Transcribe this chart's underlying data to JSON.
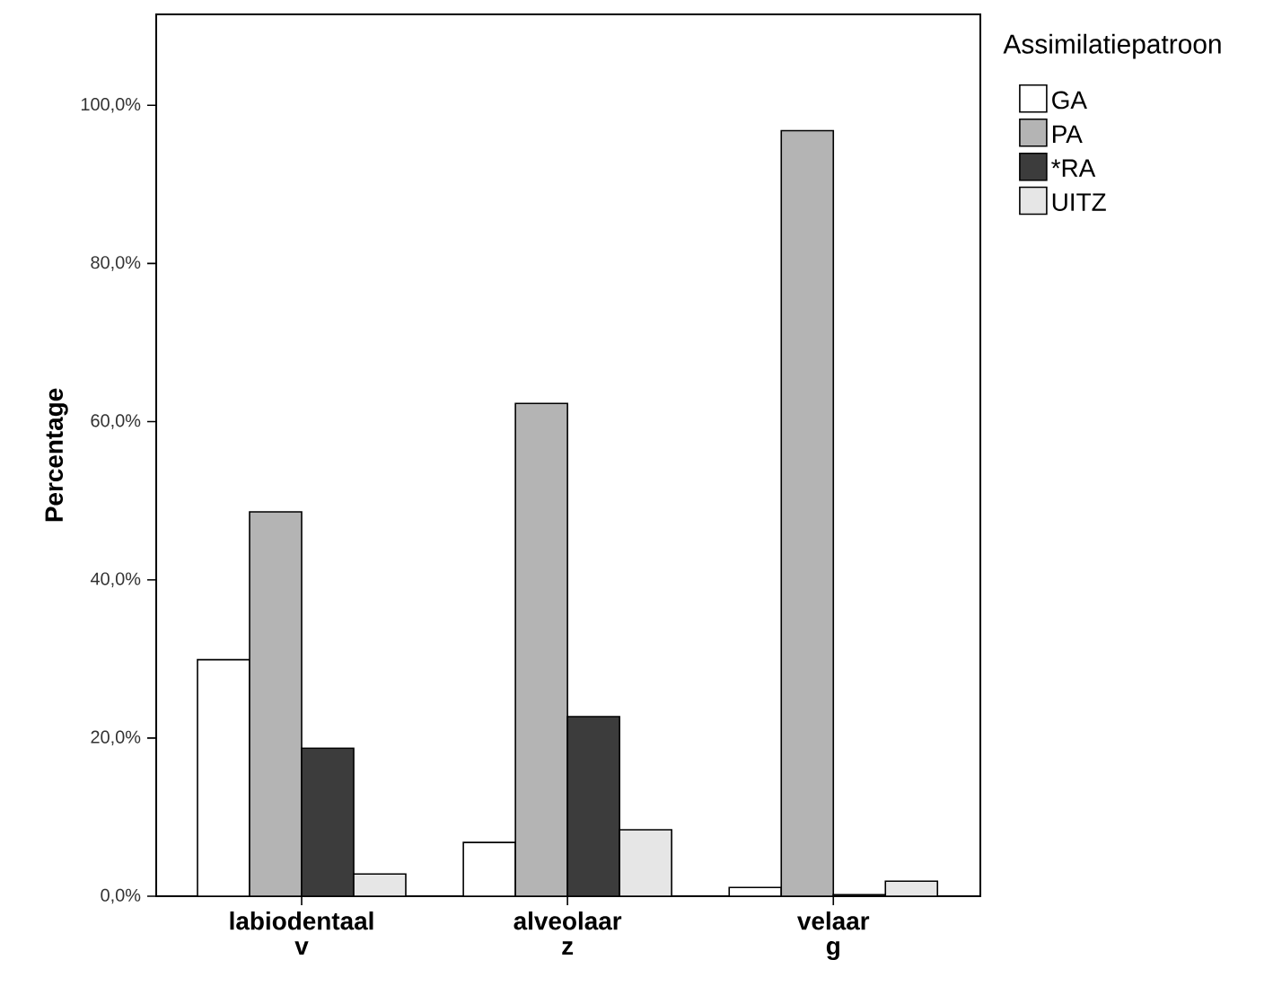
{
  "chart_data": {
    "type": "bar",
    "ylabel": "Percentage",
    "legend_title": "Assimilatiepatroon",
    "legend": "top right",
    "categories": [
      "labiodentaal\nv",
      "alveolaar\nz",
      "velaar\ng"
    ],
    "series": [
      {
        "name": "GA",
        "color": "#ffffff",
        "values": [
          29.9,
          6.8,
          1.1
        ]
      },
      {
        "name": "PA",
        "color": "#b4b4b4",
        "values": [
          48.6,
          62.3,
          96.8
        ]
      },
      {
        "name": "*RA",
        "color": "#3c3c3c",
        "values": [
          18.7,
          22.7,
          0.2
        ]
      },
      {
        "name": "UITZ",
        "color": "#e6e6e6",
        "values": [
          2.8,
          8.4,
          1.9
        ]
      }
    ],
    "ylim": [
      0,
      111.5
    ],
    "yticks": [
      {
        "value": 0,
        "label": "0,0%"
      },
      {
        "value": 20,
        "label": "20,0%"
      },
      {
        "value": 40,
        "label": "40,0%"
      },
      {
        "value": 60,
        "label": "60,0%"
      },
      {
        "value": 80,
        "label": "80,0%"
      },
      {
        "value": 100,
        "label": "100,0%"
      }
    ],
    "grid": false
  }
}
